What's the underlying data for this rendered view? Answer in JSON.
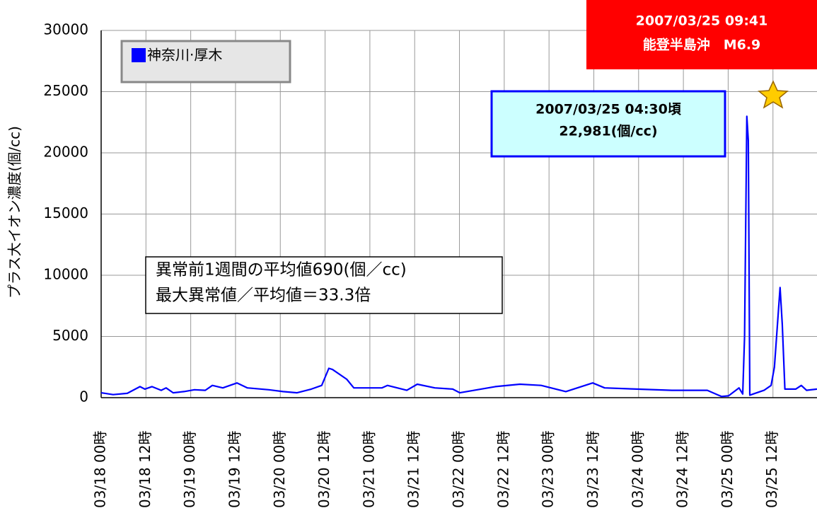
{
  "chart_data": {
    "type": "line",
    "ylabel": "プラス大イオン濃度(個/cc)",
    "x": [
      0,
      3.2,
      7,
      10.4,
      11.7,
      13.6,
      16.1,
      17.4,
      19.3,
      22.2,
      25,
      27.9,
      29.8,
      32.6,
      36.4,
      39.2,
      44.9,
      48.7,
      52.5,
      56.3,
      59.1,
      61,
      62,
      65.8,
      67.7,
      75.2,
      76.7,
      81.9,
      84.7,
      89.4,
      94.2,
      96.1,
      105.6,
      112.2,
      117.9,
      124.5,
      131.7,
      134.9,
      143.5,
      152.9,
      162.4,
      166.2,
      168.1,
      170.9,
      171.9,
      172.4,
      173,
      173.4,
      173.8,
      174.7,
      177.6,
      179.5,
      180.4,
      181.9,
      182.5,
      183.2,
      186.1,
      187.6,
      189,
      191.8
    ],
    "series": [
      {
        "name": "神奈川·厚木",
        "color": "#0000ff",
        "values": [
          400,
          250,
          350,
          900,
          700,
          900,
          600,
          800,
          400,
          500,
          650,
          600,
          1000,
          800,
          1200,
          800,
          650,
          500,
          400,
          700,
          1000,
          2400,
          2300,
          1500,
          800,
          800,
          1000,
          600,
          1100,
          800,
          700,
          400,
          900,
          1100,
          1000,
          500,
          1200,
          800,
          700,
          600,
          600,
          100,
          150,
          800,
          300,
          5000,
          22981,
          21000,
          200,
          300,
          600,
          1000,
          2500,
          9000,
          6000,
          700,
          700,
          1000,
          600,
          700
        ]
      }
    ],
    "xlim": [
      0,
      191.8
    ],
    "ylim": [
      0,
      30000
    ],
    "yticks": [
      0,
      5000,
      10000,
      15000,
      20000,
      25000,
      30000
    ],
    "xticks": [
      {
        "value": 0,
        "label": "03/18 00時"
      },
      {
        "value": 12,
        "label": "03/18 12時"
      },
      {
        "value": 24,
        "label": "03/19 00時"
      },
      {
        "value": 36,
        "label": "03/19 12時"
      },
      {
        "value": 48,
        "label": "03/20 00時"
      },
      {
        "value": 60,
        "label": "03/20 12時"
      },
      {
        "value": 72,
        "label": "03/21 00時"
      },
      {
        "value": 84,
        "label": "03/21 12時"
      },
      {
        "value": 96,
        "label": "03/22 00時"
      },
      {
        "value": 108,
        "label": "03/22 12時"
      },
      {
        "value": 120,
        "label": "03/23 00時"
      },
      {
        "value": 132,
        "label": "03/23 12時"
      },
      {
        "value": 144,
        "label": "03/24 00時"
      },
      {
        "value": 156,
        "label": "03/24 12時"
      },
      {
        "value": 168,
        "label": "03/25 00時"
      },
      {
        "value": 180,
        "label": "03/25 12時"
      }
    ],
    "grid": true,
    "legend": "upper left",
    "annotations": [
      {
        "lines": [
          "2007/03/25 09:41",
          "能登半島沖　M6.9"
        ]
      },
      {
        "lines": [
          "2007/03/25 04:30頃",
          "22,981(個/cc)"
        ]
      },
      {
        "lines": [
          "異常前1週間の平均値690(個／cc)",
          "最大異常値／平均値＝33.3倍"
        ]
      }
    ]
  }
}
